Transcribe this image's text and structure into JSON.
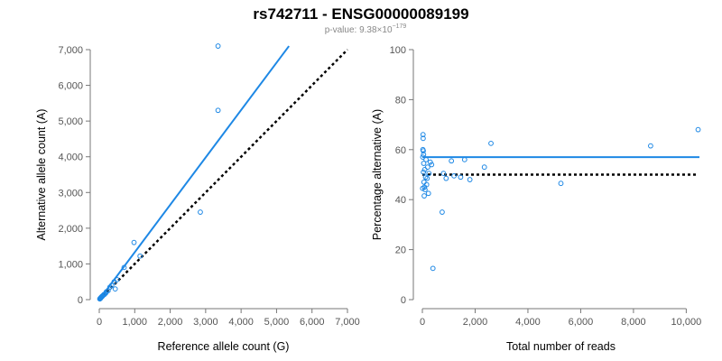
{
  "figure": {
    "title": "rs742711 - ENSG00000089199",
    "subtitle_prefix": "p-value: 9.38×10",
    "subtitle_exponent": "−179"
  },
  "colors": {
    "accent": "#1e88e5",
    "reference_line": "#000000",
    "axis": "#777777"
  },
  "chart_data": [
    {
      "type": "scatter",
      "title": "",
      "xlabel": "Reference allele count (G)",
      "ylabel": "Alternative allele count (A)",
      "xlim": [
        0,
        7000
      ],
      "ylim": [
        0,
        7000
      ],
      "x_ticks": [
        0,
        1000,
        2000,
        3000,
        4000,
        5000,
        6000,
        7000
      ],
      "y_ticks": [
        0,
        1000,
        2000,
        3000,
        4000,
        5000,
        6000,
        7000
      ],
      "x_tick_labels": [
        "0",
        "1,000",
        "2,000",
        "3,000",
        "4,000",
        "5,000",
        "6,000",
        "7,000"
      ],
      "y_tick_labels": [
        "0",
        "1,000",
        "2,000",
        "3,000",
        "4,000",
        "5,000",
        "6,000",
        "7,000"
      ],
      "grid": false,
      "series": [
        {
          "kind": "points",
          "x": [
            3350,
            3350,
            2850,
            980,
            1150,
            700,
            500,
            450,
            420,
            350,
            300,
            250,
            200,
            180,
            150,
            130,
            110,
            90,
            80,
            70,
            60,
            50,
            40,
            35,
            30,
            25,
            20,
            15
          ],
          "y": [
            7100,
            5300,
            2450,
            1600,
            1220,
            900,
            560,
            300,
            500,
            400,
            350,
            250,
            220,
            180,
            150,
            140,
            120,
            100,
            90,
            80,
            70,
            60,
            50,
            40,
            35,
            30,
            25,
            20
          ]
        },
        {
          "kind": "fit-line",
          "x": [
            0,
            5350
          ],
          "y": [
            0,
            7100
          ]
        },
        {
          "kind": "reference-line",
          "x": [
            0,
            7000
          ],
          "y": [
            0,
            7000
          ]
        }
      ]
    },
    {
      "type": "scatter",
      "title": "",
      "xlabel": "Total number of reads",
      "ylabel": "Percentage alternative (A)",
      "xlim": [
        0,
        10500
      ],
      "ylim": [
        0,
        100
      ],
      "x_ticks": [
        0,
        2000,
        4000,
        6000,
        8000,
        10000
      ],
      "y_ticks": [
        0,
        20,
        40,
        60,
        80,
        100
      ],
      "x_tick_labels": [
        "0",
        "2,000",
        "4,000",
        "6,000",
        "8,000",
        "10,000"
      ],
      "y_tick_labels": [
        "0",
        "20",
        "40",
        "60",
        "80",
        "100"
      ],
      "grid": false,
      "series": [
        {
          "kind": "points",
          "x": [
            10450,
            8650,
            5250,
            2600,
            2350,
            1800,
            1600,
            1450,
            1200,
            1100,
            900,
            800,
            750,
            400,
            350,
            300,
            250,
            230,
            200,
            180,
            160,
            140,
            120,
            100,
            90,
            80,
            70,
            60,
            50,
            45,
            40,
            35,
            30,
            25,
            20,
            15,
            10
          ],
          "y": [
            68,
            61.5,
            46.5,
            62.5,
            53,
            48,
            56,
            49,
            49.5,
            55.5,
            48.5,
            50.5,
            35,
            12.5,
            54,
            55,
            50.5,
            42.5,
            53,
            48.5,
            46,
            56,
            49,
            44,
            52,
            45,
            41.5,
            47,
            54.5,
            58,
            51,
            59.5,
            64.5,
            66,
            60,
            57,
            44.5
          ]
        },
        {
          "kind": "fit-line",
          "x": [
            0,
            10500
          ],
          "y": [
            57,
            57
          ]
        },
        {
          "kind": "reference-line",
          "x": [
            0,
            10400
          ],
          "y": [
            50,
            50
          ]
        }
      ]
    }
  ]
}
